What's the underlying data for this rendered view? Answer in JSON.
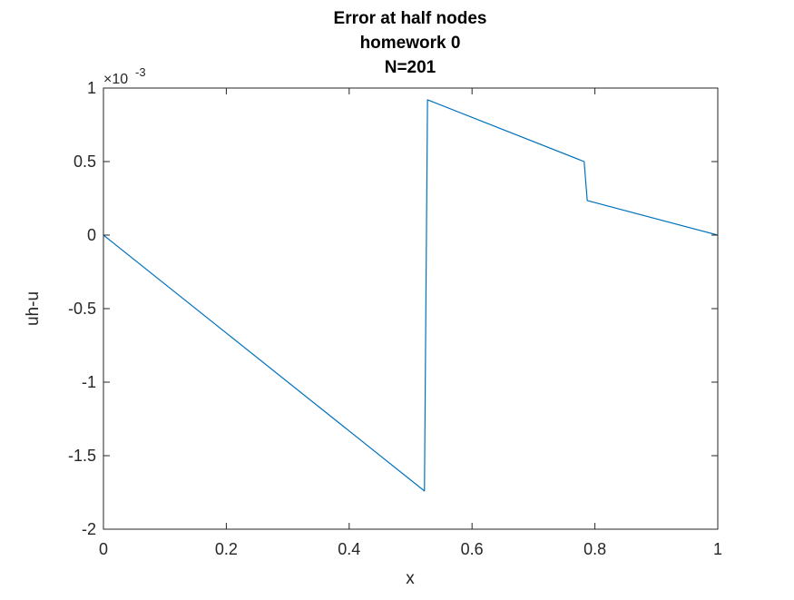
{
  "chart_data": {
    "type": "line",
    "title": [
      "Error at half nodes",
      "homework 0",
      "N=201"
    ],
    "xlabel": "x",
    "ylabel": "uh-u",
    "xlim": [
      0,
      1
    ],
    "ylim": [
      -2,
      1
    ],
    "xticks": [
      0,
      0.2,
      0.4,
      0.6,
      0.8,
      1
    ],
    "xtick_labels": [
      "0",
      "0.2",
      "0.4",
      "0.6",
      "0.8",
      "1"
    ],
    "yticks": [
      -2,
      -1.5,
      -1,
      -0.5,
      0,
      0.5,
      1
    ],
    "ytick_labels": [
      "-2",
      "-1.5",
      "-1",
      "-0.5",
      "0",
      "0.5",
      "1"
    ],
    "y_multiplier": {
      "base": "×10",
      "exponent": "-3"
    },
    "grid": false,
    "series": [
      {
        "color": "#0072bd",
        "x": [
          0,
          0.5225,
          0.5275,
          0.7825,
          0.7875,
          1
        ],
        "y": [
          0,
          -1.74,
          0.92,
          0.5,
          0.235,
          0
        ]
      }
    ]
  }
}
